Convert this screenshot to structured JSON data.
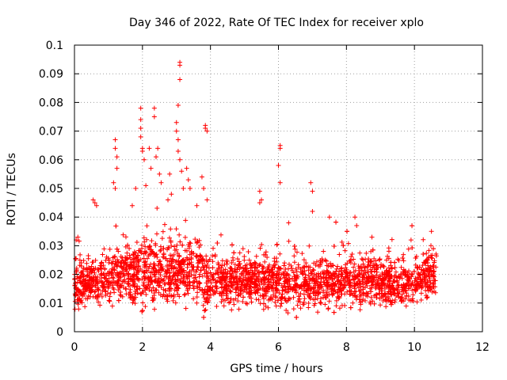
{
  "chart_data": {
    "type": "scatter",
    "title": "Day 346 of 2022, Rate Of TEC Index for receiver xplo",
    "xlabel": "GPS time / hours",
    "ylabel": "ROTI / TECUs",
    "xlim": [
      0,
      12
    ],
    "ylim": [
      0,
      0.1
    ],
    "x_ticks": [
      "0",
      "2",
      "4",
      "6",
      "8",
      "10",
      "12"
    ],
    "y_ticks": [
      "0",
      "0.01",
      "0.02",
      "0.03",
      "0.04",
      "0.05",
      "0.06",
      "0.07",
      "0.08",
      "0.09",
      "0.1"
    ],
    "grid": true,
    "marker": "+",
    "color": "#ff0000",
    "x_extent_hours": [
      0,
      10.65
    ],
    "band_center_by_hour": [
      [
        0.0,
        0.016
      ],
      [
        0.5,
        0.018
      ],
      [
        1.0,
        0.019
      ],
      [
        1.5,
        0.02
      ],
      [
        2.0,
        0.021
      ],
      [
        2.5,
        0.021
      ],
      [
        3.0,
        0.021
      ],
      [
        3.5,
        0.021
      ],
      [
        4.0,
        0.018
      ],
      [
        4.5,
        0.018
      ],
      [
        5.0,
        0.018
      ],
      [
        5.5,
        0.017
      ],
      [
        6.0,
        0.017
      ],
      [
        6.5,
        0.017
      ],
      [
        7.0,
        0.017
      ],
      [
        7.5,
        0.017
      ],
      [
        8.0,
        0.018
      ],
      [
        8.5,
        0.018
      ],
      [
        9.0,
        0.017
      ],
      [
        9.5,
        0.017
      ],
      [
        10.0,
        0.017
      ],
      [
        10.6,
        0.02
      ]
    ],
    "outliers": [
      [
        0.05,
        0.032
      ],
      [
        0.1,
        0.033
      ],
      [
        0.55,
        0.046
      ],
      [
        0.6,
        0.045
      ],
      [
        0.65,
        0.044
      ],
      [
        1.2,
        0.067
      ],
      [
        1.2,
        0.064
      ],
      [
        1.25,
        0.061
      ],
      [
        1.25,
        0.057
      ],
      [
        1.15,
        0.052
      ],
      [
        1.2,
        0.05
      ],
      [
        1.7,
        0.044
      ],
      [
        1.8,
        0.05
      ],
      [
        1.95,
        0.078
      ],
      [
        1.95,
        0.074
      ],
      [
        1.95,
        0.071
      ],
      [
        1.95,
        0.068
      ],
      [
        2.0,
        0.064
      ],
      [
        2.0,
        0.063
      ],
      [
        2.05,
        0.06
      ],
      [
        2.1,
        0.051
      ],
      [
        2.2,
        0.064
      ],
      [
        2.25,
        0.057
      ],
      [
        2.35,
        0.078
      ],
      [
        2.35,
        0.075
      ],
      [
        2.45,
        0.064
      ],
      [
        2.4,
        0.061
      ],
      [
        2.5,
        0.055
      ],
      [
        2.55,
        0.052
      ],
      [
        2.8,
        0.055
      ],
      [
        2.85,
        0.048
      ],
      [
        2.75,
        0.046
      ],
      [
        3.0,
        0.073
      ],
      [
        3.0,
        0.07
      ],
      [
        3.05,
        0.067
      ],
      [
        3.1,
        0.094
      ],
      [
        3.1,
        0.093
      ],
      [
        3.1,
        0.088
      ],
      [
        3.05,
        0.079
      ],
      [
        3.1,
        0.06
      ],
      [
        3.15,
        0.056
      ],
      [
        3.05,
        0.063
      ],
      [
        3.2,
        0.05
      ],
      [
        3.3,
        0.057
      ],
      [
        3.35,
        0.053
      ],
      [
        3.4,
        0.05
      ],
      [
        3.6,
        0.044
      ],
      [
        3.85,
        0.072
      ],
      [
        3.85,
        0.071
      ],
      [
        3.9,
        0.07
      ],
      [
        3.75,
        0.054
      ],
      [
        3.8,
        0.05
      ],
      [
        3.9,
        0.046
      ],
      [
        5.45,
        0.049
      ],
      [
        5.5,
        0.046
      ],
      [
        5.45,
        0.045
      ],
      [
        6.05,
        0.065
      ],
      [
        6.05,
        0.064
      ],
      [
        6.0,
        0.058
      ],
      [
        6.05,
        0.052
      ],
      [
        6.3,
        0.038
      ],
      [
        6.95,
        0.052
      ],
      [
        7.0,
        0.049
      ],
      [
        7.0,
        0.042
      ],
      [
        7.5,
        0.04
      ],
      [
        8.25,
        0.04
      ],
      [
        8.3,
        0.037
      ],
      [
        8.75,
        0.033
      ],
      [
        9.9,
        0.032
      ],
      [
        10.5,
        0.035
      ]
    ]
  }
}
